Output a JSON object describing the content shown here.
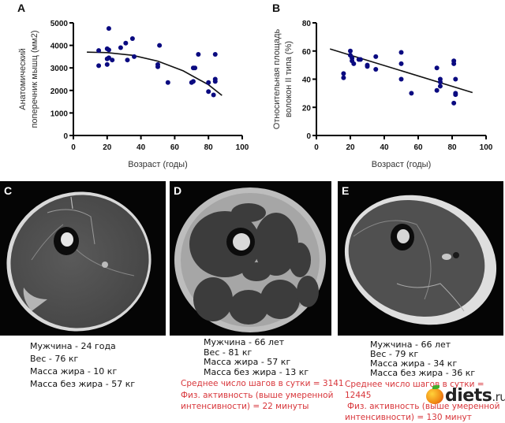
{
  "panels": {
    "a_letter": "A",
    "b_letter": "B",
    "c_letter": "C",
    "d_letter": "D",
    "e_letter": "E"
  },
  "chart_data": [
    {
      "type": "scatter",
      "panel": "A",
      "title": "",
      "xlabel": "Возраст (годы)",
      "ylabel_lines": [
        "Анатомический",
        "поперечник мышц (мм2)"
      ],
      "xlim": [
        0,
        100
      ],
      "ylim": [
        0,
        5000
      ],
      "xticks": [
        0,
        20,
        40,
        60,
        80,
        100
      ],
      "yticks": [
        0,
        1000,
        2000,
        3000,
        4000,
        5000
      ],
      "grid": false,
      "point_color": "#0a0a80",
      "points": [
        [
          15,
          3770
        ],
        [
          15,
          3100
        ],
        [
          20,
          3850
        ],
        [
          21,
          4750
        ],
        [
          21,
          3800
        ],
        [
          20,
          3400
        ],
        [
          20,
          3150
        ],
        [
          21,
          3450
        ],
        [
          23,
          3350
        ],
        [
          28,
          3900
        ],
        [
          31,
          4100
        ],
        [
          35,
          4300
        ],
        [
          32,
          3350
        ],
        [
          36,
          3500
        ],
        [
          50,
          3150
        ],
        [
          50,
          3050
        ],
        [
          51,
          4000
        ],
        [
          56,
          2350
        ],
        [
          70,
          2350
        ],
        [
          71,
          2400
        ],
        [
          71,
          3000
        ],
        [
          72,
          3000
        ],
        [
          74,
          3600
        ],
        [
          80,
          2350
        ],
        [
          80,
          1950
        ],
        [
          83,
          1800
        ],
        [
          84,
          3600
        ],
        [
          84,
          2500
        ],
        [
          84,
          2400
        ]
      ],
      "fit": {
        "type": "quadratic",
        "x_range": [
          8,
          88
        ],
        "points": [
          [
            8,
            3700
          ],
          [
            20,
            3680
          ],
          [
            35,
            3560
          ],
          [
            50,
            3300
          ],
          [
            65,
            2870
          ],
          [
            80,
            2250
          ],
          [
            88,
            1780
          ]
        ]
      }
    },
    {
      "type": "scatter",
      "panel": "B",
      "title": "",
      "xlabel": "Возраст (годы)",
      "ylabel_lines": [
        "Относительная площадь",
        "волокон II типа (%)"
      ],
      "xlim": [
        0,
        100
      ],
      "ylim": [
        0,
        80
      ],
      "xticks": [
        0,
        20,
        40,
        60,
        80,
        100
      ],
      "yticks": [
        0,
        20,
        40,
        60,
        80
      ],
      "grid": false,
      "point_color": "#0a0a80",
      "points": [
        [
          16,
          44
        ],
        [
          16,
          41
        ],
        [
          20,
          60
        ],
        [
          20,
          57
        ],
        [
          21,
          55
        ],
        [
          21,
          53
        ],
        [
          22,
          51
        ],
        [
          25,
          54
        ],
        [
          26,
          54
        ],
        [
          30,
          50
        ],
        [
          30,
          49
        ],
        [
          35,
          56
        ],
        [
          35,
          47
        ],
        [
          50,
          59
        ],
        [
          50,
          51
        ],
        [
          50,
          40
        ],
        [
          56,
          30
        ],
        [
          71,
          48
        ],
        [
          71,
          32
        ],
        [
          73,
          40
        ],
        [
          73,
          38
        ],
        [
          73,
          35
        ],
        [
          81,
          53
        ],
        [
          81,
          51
        ],
        [
          81,
          23
        ],
        [
          82,
          40
        ],
        [
          82,
          30
        ],
        [
          82,
          29
        ]
      ],
      "fit": {
        "type": "linear",
        "x_range": [
          8,
          92
        ],
        "points": [
          [
            8,
            61.5
          ],
          [
            92,
            30.5
          ]
        ]
      }
    }
  ],
  "captions": {
    "c": [
      "Мужчина - 24 года",
      "Вес - 76 кг",
      "Масса жира - 10 кг",
      "Масса без жира - 57 кг"
    ],
    "d": [
      "Мужчина - 66 лет",
      "Вес - 81 кг",
      "Масса жира - 57 кг",
      "Масса без жира - 13 кг"
    ],
    "d_activity": [
      "Среднее число шагов в сутки = 3141",
      "Физ. активность (выше умеренной",
      "интенсивности) = 22 минуты"
    ],
    "e": [
      "Мужчина - 66 лет",
      "Вес - 79 кг",
      "Масса жира - 34 кг",
      "Масса без жира - 36 кг"
    ],
    "e_activity": [
      "Среднее число шагов в сутки = 12445",
      "Физ. активность (выше умеренной",
      "интенсивности) = 130 минут"
    ]
  },
  "watermark": {
    "name": "diets",
    "tld": ".ru"
  },
  "colors": {
    "activity_text": "#d8353a",
    "points": "#0a0a80"
  }
}
